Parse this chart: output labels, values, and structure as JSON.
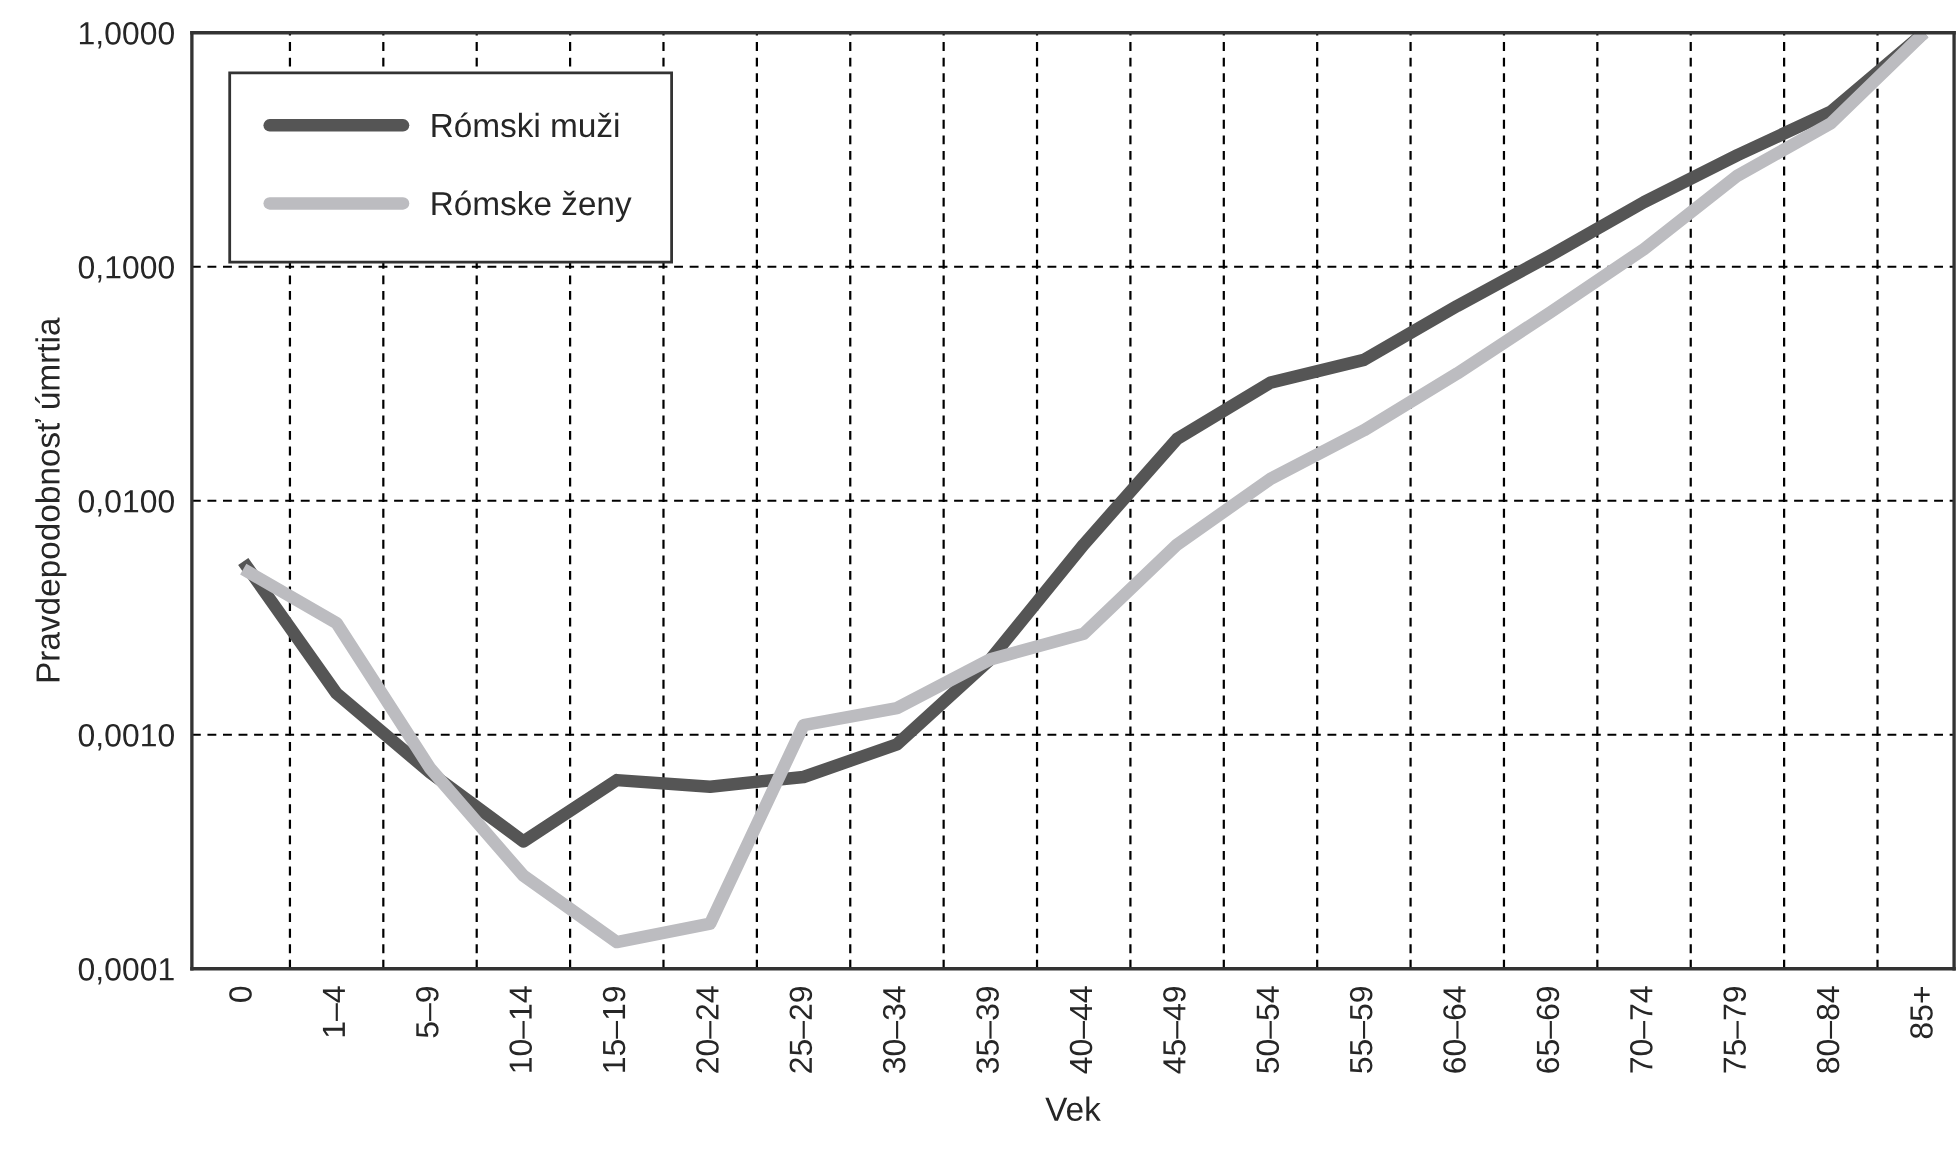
{
  "chart_data": {
    "type": "line",
    "xlabel": "Vek",
    "ylabel": "Pravdepodobnosť úmrtia",
    "categories": [
      "0",
      "1–4",
      "5–9",
      "10–14",
      "15–19",
      "20–24",
      "25–29",
      "30–34",
      "35–39",
      "40–44",
      "45–49",
      "50–54",
      "55–59",
      "60–64",
      "65–69",
      "70–74",
      "75–79",
      "80–84",
      "85+"
    ],
    "series": [
      {
        "name": "Rómski muži",
        "color": "#555555",
        "values": [
          0.0055,
          0.0015,
          0.00069,
          0.00035,
          0.00064,
          0.0006,
          0.00066,
          0.00091,
          0.0021,
          0.0065,
          0.0184,
          0.032,
          0.04,
          0.068,
          0.112,
          0.189,
          0.3,
          0.46,
          1.0
        ]
      },
      {
        "name": "Rómske ženy",
        "color": "#bcbcc0",
        "values": [
          0.0051,
          0.003,
          0.00072,
          0.00025,
          0.00013,
          0.000156,
          0.0011,
          0.0013,
          0.0021,
          0.0027,
          0.0065,
          0.0124,
          0.02,
          0.035,
          0.064,
          0.119,
          0.245,
          0.41,
          1.0
        ]
      }
    ],
    "log": "y",
    "ylim": [
      0.0001,
      1
    ],
    "yticks": [
      {
        "value": 0.0001,
        "label": "0,0001"
      },
      {
        "value": 0.001,
        "label": "0,0010"
      },
      {
        "value": 0.01,
        "label": "0,0100"
      },
      {
        "value": 0.1,
        "label": "0,1000"
      },
      {
        "value": 1,
        "label": "1,0000"
      }
    ],
    "grid": true,
    "legend": "top left",
    "marker": "none",
    "line_style": "solid"
  }
}
